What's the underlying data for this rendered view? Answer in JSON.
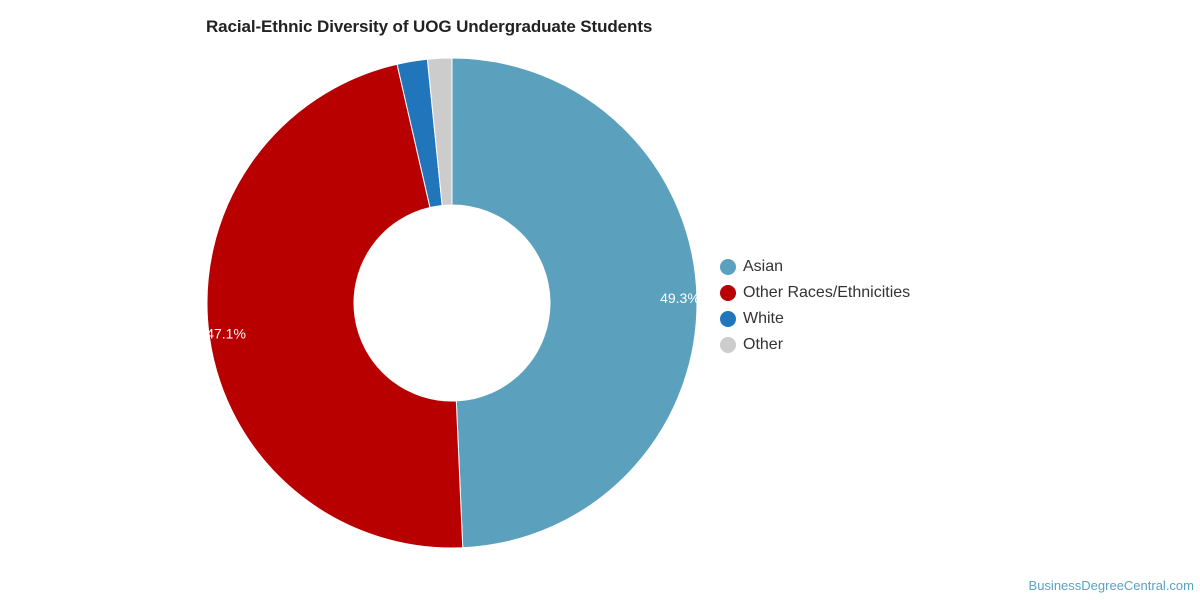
{
  "chart_data": {
    "type": "pie",
    "title": "Racial-Ethnic Diversity of UOG Undergraduate Students",
    "categories": [
      "Asian",
      "Other Races/Ethnicities",
      "White",
      "Other"
    ],
    "values": [
      49.3,
      47.1,
      2.0,
      1.6
    ],
    "data_labels": [
      "49.3%",
      "47.1%",
      "",
      ""
    ],
    "colors": [
      "#5ba1be",
      "#b80000",
      "#2176bb",
      "#cccccc"
    ],
    "donut": true,
    "legend_position": "right"
  },
  "footer": {
    "source": "BusinessDegreeCentral.com"
  }
}
